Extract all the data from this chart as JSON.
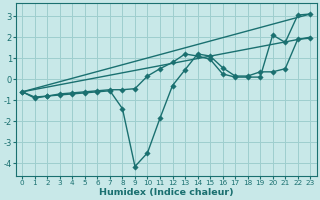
{
  "xlabel": "Humidex (Indice chaleur)",
  "background_color": "#c8e8e8",
  "line_color": "#1a7070",
  "xlim": [
    -0.5,
    23.5
  ],
  "ylim": [
    -4.6,
    3.6
  ],
  "xticks": [
    0,
    1,
    2,
    3,
    4,
    5,
    6,
    7,
    8,
    9,
    10,
    11,
    12,
    13,
    14,
    15,
    16,
    17,
    18,
    19,
    20,
    21,
    22,
    23
  ],
  "yticks": [
    -4,
    -3,
    -2,
    -1,
    0,
    1,
    2,
    3
  ],
  "lines": [
    {
      "x": [
        0,
        23
      ],
      "y": [
        -0.6,
        3.1
      ],
      "marker": false
    },
    {
      "x": [
        0,
        23
      ],
      "y": [
        -0.6,
        2.0
      ],
      "marker": false
    },
    {
      "x": [
        0,
        1,
        2,
        3,
        4,
        5,
        6,
        7,
        8,
        9,
        10,
        11,
        12,
        13,
        14,
        15,
        16,
        17,
        18,
        19,
        20,
        21,
        22,
        23
      ],
      "y": [
        -0.6,
        -0.9,
        -0.8,
        -0.75,
        -0.7,
        -0.65,
        -0.6,
        -0.55,
        -1.4,
        -4.15,
        -3.5,
        -1.85,
        -0.3,
        0.45,
        1.2,
        1.1,
        0.55,
        0.15,
        0.15,
        0.35,
        0.35,
        0.5,
        1.9,
        1.95
      ],
      "marker": true
    },
    {
      "x": [
        0,
        1,
        2,
        3,
        4,
        5,
        6,
        7,
        8,
        9,
        10,
        11,
        12,
        13,
        14,
        15,
        16,
        17,
        18,
        19,
        20,
        21,
        22,
        23
      ],
      "y": [
        -0.6,
        -0.85,
        -0.8,
        -0.7,
        -0.65,
        -0.6,
        -0.55,
        -0.5,
        -0.5,
        -0.45,
        0.15,
        0.5,
        0.8,
        1.2,
        1.1,
        0.95,
        0.25,
        0.1,
        0.1,
        0.1,
        2.1,
        1.75,
        3.05,
        3.1
      ],
      "marker": true
    }
  ],
  "grid_color": "#9ecece",
  "markersize": 2.8,
  "linewidth": 1.0
}
